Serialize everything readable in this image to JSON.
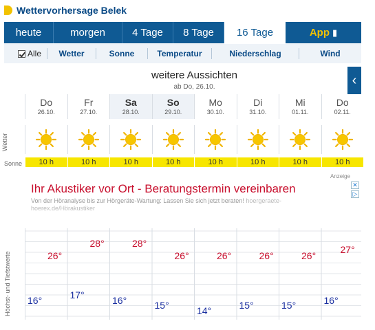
{
  "header": {
    "title": "Wettervorhersage Belek"
  },
  "tabs": [
    {
      "label": "heute",
      "width": 72
    },
    {
      "label": "morgen",
      "width": 100
    },
    {
      "label": "4 Tage",
      "width": 74
    },
    {
      "label": "8 Tage",
      "width": 74
    },
    {
      "label": "16 Tage",
      "width": 89,
      "active": true
    },
    {
      "label": "App",
      "width": 110,
      "app": true
    }
  ],
  "subnav": [
    {
      "label": "Alle",
      "checkbox": true,
      "width": 63
    },
    {
      "label": "Wetter",
      "width": 71
    },
    {
      "label": "Sonne",
      "width": 75
    },
    {
      "label": "Temperatur",
      "width": 93
    },
    {
      "label": "Niederschlag",
      "width": 127
    },
    {
      "label": "Wind",
      "width": 90
    }
  ],
  "outlook": {
    "title": "weitere Aussichten",
    "subtitle": "ab Do, 26.10.",
    "back_icon": "chevron-left-icon"
  },
  "days": [
    {
      "name": "Do",
      "date": "26.10."
    },
    {
      "name": "Fr",
      "date": "27.10."
    },
    {
      "name": "Sa",
      "date": "28.10.",
      "weekend": true
    },
    {
      "name": "So",
      "date": "29.10.",
      "weekend": true
    },
    {
      "name": "Mo",
      "date": "30.10."
    },
    {
      "name": "Di",
      "date": "31.10."
    },
    {
      "name": "Mi",
      "date": "01.11."
    },
    {
      "name": "Do",
      "date": "02.11."
    }
  ],
  "rows": {
    "weather_label": "Wetter",
    "sun_label": "Sonne",
    "temp_label": "Höchst- und Tiefstwerte"
  },
  "weather_icon": "sun-icon",
  "sun_hours": [
    "10 h",
    "10 h",
    "10 h",
    "10 h",
    "10 h",
    "10 h",
    "10 h",
    "10 h"
  ],
  "ad": {
    "tag": "Anzeige",
    "title": "Ihr Akustiker vor Ort - Beratungstermin vereinbaren",
    "text": "Von der Höranalyse bis zur Hörgeräte-Wartung: Lassen Sie sich jetzt beraten!",
    "url": "hoergeraete-hoerex.de/Hörakustiker"
  },
  "temperatures": {
    "high": [
      "26°",
      "28°",
      "28°",
      "26°",
      "26°",
      "26°",
      "26°",
      "27°"
    ],
    "low": [
      "16°",
      "17°",
      "16°",
      "15°",
      "14°",
      "15°",
      "15°",
      "16°"
    ],
    "high_values": [
      26,
      28,
      28,
      26,
      26,
      26,
      26,
      27
    ],
    "low_values": [
      16,
      17,
      16,
      15,
      14,
      15,
      15,
      16
    ]
  },
  "colors": {
    "brand": "#0f5a94",
    "accent": "#f2c200",
    "high": "#c8102e",
    "low": "#1a2fa0",
    "sun_bar": "#f7e600"
  }
}
